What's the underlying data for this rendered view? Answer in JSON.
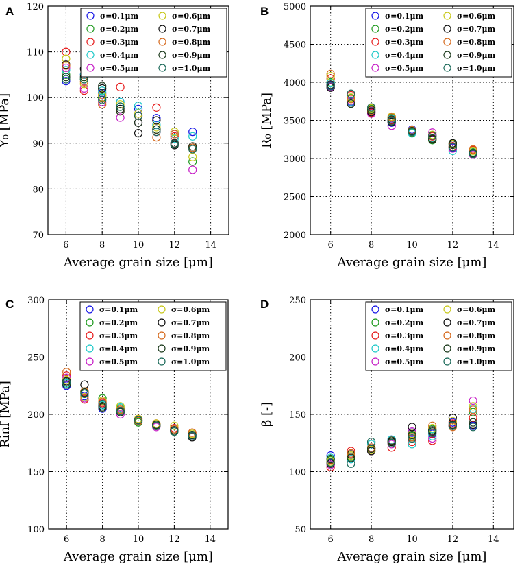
{
  "colors": {
    "s01": "#1515e6",
    "s02": "#1f9a1f",
    "s03": "#e61c1c",
    "s04": "#1fc9c9",
    "s05": "#c61ec6",
    "s06": "#c8c81a",
    "s07": "#111111",
    "s08": "#d66a1e",
    "s09": "#1c3a1c",
    "s10": "#1c6a5a"
  },
  "chart_data": [
    {
      "panel": "A",
      "type": "scatter",
      "xlabel": "Average grain size [μm]",
      "ylabel": "Y₀ [MPa]",
      "xlim": [
        5,
        15
      ],
      "ylim": [
        70,
        120
      ],
      "xticks": [
        6,
        8,
        10,
        12,
        14
      ],
      "yticks": [
        70,
        80,
        90,
        100,
        110,
        120
      ],
      "grid": true,
      "legend": "top-right",
      "x": [
        6,
        7,
        8,
        9,
        10,
        11,
        12,
        13
      ],
      "series": [
        {
          "name": "σ=0.1μm",
          "color": "s01",
          "values": [
            103.6,
            105.0,
            101.0,
            99.0,
            97.5,
            95.5,
            92.0,
            92.5
          ]
        },
        {
          "name": "σ=0.2μm",
          "color": "s02",
          "values": [
            105.0,
            104.0,
            100.0,
            98.0,
            94.5,
            93.0,
            90.0,
            86.0
          ]
        },
        {
          "name": "σ=0.3μm",
          "color": "s03",
          "values": [
            110.0,
            101.5,
            100.5,
            102.3,
            96.0,
            97.8,
            91.5,
            89.3
          ]
        },
        {
          "name": "σ=0.4μm",
          "color": "s04",
          "values": [
            106.0,
            105.0,
            101.5,
            99.0,
            98.2,
            94.0,
            91.0,
            91.5
          ]
        },
        {
          "name": "σ=0.5μm",
          "color": "s05",
          "values": [
            106.5,
            102.0,
            99.0,
            95.6,
            94.5,
            92.5,
            90.0,
            84.2
          ]
        },
        {
          "name": "σ=0.6μm",
          "color": "s06",
          "values": [
            108.5,
            103.0,
            100.5,
            98.5,
            96.5,
            93.5,
            92.5,
            87.0
          ]
        },
        {
          "name": "σ=0.7μm",
          "color": "s07",
          "values": [
            107.2,
            106.3,
            102.0,
            97.5,
            92.2,
            95.0,
            89.6,
            89.0
          ]
        },
        {
          "name": "σ=0.8μm",
          "color": "s08",
          "values": [
            107.0,
            103.5,
            98.5,
            97.0,
            96.0,
            91.3,
            92.0,
            89.0
          ]
        },
        {
          "name": "σ=0.9μm",
          "color": "s09",
          "values": [
            104.5,
            104.5,
            102.5,
            97.0,
            94.5,
            93.0,
            90.0,
            89.3
          ]
        },
        {
          "name": "σ=1.0μm",
          "color": "s10",
          "values": [
            104.0,
            104.0,
            99.5,
            98.0,
            96.0,
            92.5,
            89.8,
            88.7
          ]
        }
      ]
    },
    {
      "panel": "B",
      "type": "scatter",
      "xlabel": "Average grain size [μm]",
      "ylabel": "R₀ [MPa]",
      "xlim": [
        5,
        15
      ],
      "ylim": [
        2000,
        5000
      ],
      "xticks": [
        6,
        8,
        10,
        12,
        14
      ],
      "yticks": [
        2000,
        2500,
        3000,
        3500,
        4000,
        4500,
        5000
      ],
      "grid": true,
      "legend": "top-right",
      "x": [
        6,
        7,
        8,
        9,
        10,
        11,
        12,
        13
      ],
      "series": [
        {
          "name": "σ=0.1μm",
          "color": "s01",
          "values": [
            3960,
            3740,
            3620,
            3470,
            3380,
            3300,
            3140,
            3060
          ]
        },
        {
          "name": "σ=0.2μm",
          "color": "s02",
          "values": [
            4000,
            3790,
            3650,
            3530,
            3340,
            3240,
            3200,
            3080
          ]
        },
        {
          "name": "σ=0.3μm",
          "color": "s03",
          "values": [
            4050,
            3830,
            3600,
            3500,
            3360,
            3290,
            3160,
            3110
          ]
        },
        {
          "name": "σ=0.4μm",
          "color": "s04",
          "values": [
            3990,
            3750,
            3640,
            3520,
            3330,
            3270,
            3100,
            3070
          ]
        },
        {
          "name": "σ=0.5μm",
          "color": "s05",
          "values": [
            3940,
            3760,
            3590,
            3430,
            3350,
            3340,
            3130,
            3050
          ]
        },
        {
          "name": "σ=0.6μm",
          "color": "s06",
          "values": [
            4080,
            3800,
            3660,
            3550,
            3370,
            3310,
            3190,
            3100
          ]
        },
        {
          "name": "σ=0.7μm",
          "color": "s07",
          "values": [
            3930,
            3720,
            3610,
            3480,
            3360,
            3250,
            3200,
            3060
          ]
        },
        {
          "name": "σ=0.8μm",
          "color": "s08",
          "values": [
            4110,
            3780,
            3630,
            3540,
            3370,
            3260,
            3150,
            3120
          ]
        },
        {
          "name": "σ=0.9μm",
          "color": "s09",
          "values": [
            3970,
            3720,
            3640,
            3510,
            3360,
            3260,
            3180,
            3070
          ]
        },
        {
          "name": "σ=1.0μm",
          "color": "s10",
          "values": [
            3950,
            3850,
            3670,
            3490,
            3350,
            3300,
            3150,
            3060
          ]
        }
      ]
    },
    {
      "panel": "C",
      "type": "scatter",
      "xlabel": "Average grain size [μm]",
      "ylabel": "Rinf [MPa]",
      "xlim": [
        5,
        15
      ],
      "ylim": [
        100,
        300
      ],
      "xticks": [
        6,
        8,
        10,
        12,
        14
      ],
      "yticks": [
        100,
        150,
        200,
        250,
        300
      ],
      "grid": true,
      "legend": "top-right",
      "x": [
        6,
        7,
        8,
        9,
        10,
        11,
        12,
        13
      ],
      "series": [
        {
          "name": "σ=0.1μm",
          "color": "s01",
          "values": [
            225,
            216,
            205,
            202,
            195,
            190,
            186,
            182
          ]
        },
        {
          "name": "σ=0.2μm",
          "color": "s02",
          "values": [
            228,
            220,
            214,
            205,
            193,
            191,
            185,
            181
          ]
        },
        {
          "name": "σ=0.3μm",
          "color": "s03",
          "values": [
            234,
            213,
            210,
            204,
            196,
            192,
            188,
            184
          ]
        },
        {
          "name": "σ=0.4μm",
          "color": "s04",
          "values": [
            227,
            218,
            208,
            206,
            194,
            190,
            187,
            182
          ]
        },
        {
          "name": "σ=0.5μm",
          "color": "s05",
          "values": [
            232,
            214,
            209,
            200,
            195,
            189,
            186,
            181
          ]
        },
        {
          "name": "σ=0.6μm",
          "color": "s06",
          "values": [
            230,
            215,
            212,
            207,
            196,
            192,
            190,
            183
          ]
        },
        {
          "name": "σ=0.7μm",
          "color": "s07",
          "values": [
            229,
            226,
            207,
            203,
            194,
            190,
            186,
            180
          ]
        },
        {
          "name": "σ=0.8μm",
          "color": "s08",
          "values": [
            237,
            220,
            211,
            204,
            194,
            190,
            187,
            184
          ]
        },
        {
          "name": "σ=0.9μm",
          "color": "s09",
          "values": [
            226,
            219,
            206,
            202,
            195,
            191,
            186,
            182
          ]
        },
        {
          "name": "σ=1.0μm",
          "color": "s10",
          "values": [
            228,
            218,
            209,
            203,
            195,
            190,
            185,
            181
          ]
        }
      ]
    },
    {
      "panel": "D",
      "type": "scatter",
      "xlabel": "Average grain size [μm]",
      "ylabel": "β [-]",
      "xlim": [
        5,
        15
      ],
      "ylim": [
        50,
        250
      ],
      "xticks": [
        6,
        8,
        10,
        12,
        14
      ],
      "yticks": [
        50,
        100,
        150,
        200,
        250
      ],
      "grid": true,
      "legend": "top-right",
      "x": [
        6,
        7,
        8,
        9,
        10,
        11,
        12,
        13
      ],
      "series": [
        {
          "name": "σ=0.1μm",
          "color": "s01",
          "values": [
            114,
            111,
            121,
            128,
            134,
            133,
            143,
            140
          ]
        },
        {
          "name": "σ=0.2μm",
          "color": "s02",
          "values": [
            110,
            113,
            118,
            126,
            131,
            137,
            140,
            152
          ]
        },
        {
          "name": "σ=0.3μm",
          "color": "s03",
          "values": [
            104,
            118,
            120,
            121,
            126,
            127,
            142,
            147
          ]
        },
        {
          "name": "σ=0.4μm",
          "color": "s04",
          "values": [
            112,
            111,
            124,
            128,
            124,
            131,
            140,
            155
          ]
        },
        {
          "name": "σ=0.5μm",
          "color": "s05",
          "values": [
            106,
            116,
            118,
            124,
            135,
            129,
            140,
            162
          ]
        },
        {
          "name": "σ=0.6μm",
          "color": "s06",
          "values": [
            109,
            114,
            119,
            127,
            133,
            138,
            144,
            157
          ]
        },
        {
          "name": "σ=0.7μm",
          "color": "s07",
          "values": [
            107,
            115,
            118,
            126,
            139,
            136,
            147,
            141
          ]
        },
        {
          "name": "σ=0.8μm",
          "color": "s08",
          "values": [
            108,
            116,
            121,
            125,
            130,
            140,
            139,
            154
          ]
        },
        {
          "name": "σ=0.9μm",
          "color": "s09",
          "values": [
            111,
            112,
            120,
            127,
            132,
            135,
            141,
            143
          ]
        },
        {
          "name": "σ=1.0μm",
          "color": "s10",
          "values": [
            108,
            107,
            126,
            125,
            129,
            134,
            140,
            139
          ]
        }
      ]
    }
  ]
}
